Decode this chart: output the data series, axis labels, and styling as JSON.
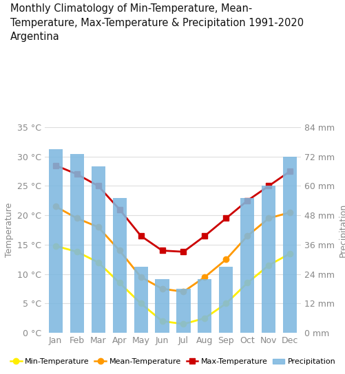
{
  "title": "Monthly Climatology of Min-Temperature, Mean-\nTemperature, Max-Temperature & Precipitation 1991-2020\nArgentina",
  "months": [
    "Jan",
    "Feb",
    "Mar",
    "Apr",
    "May",
    "Jun",
    "Jul",
    "Aug",
    "Sep",
    "Oct",
    "Nov",
    "Dec"
  ],
  "min_temp": [
    14.8,
    13.8,
    12.0,
    8.5,
    5.0,
    2.0,
    1.5,
    2.5,
    5.0,
    8.5,
    11.5,
    13.5
  ],
  "mean_temp": [
    21.5,
    19.5,
    18.0,
    14.0,
    9.5,
    7.5,
    7.0,
    9.5,
    12.5,
    16.5,
    19.5,
    20.5
  ],
  "max_temp": [
    28.5,
    27.0,
    25.0,
    21.0,
    16.5,
    14.0,
    13.8,
    16.5,
    19.5,
    22.5,
    25.0,
    27.5
  ],
  "precipitation": [
    75,
    73,
    68,
    55,
    27,
    22,
    18,
    22,
    27,
    55,
    60,
    72
  ],
  "bar_color": "#7eb8e0",
  "min_temp_color": "#ffee00",
  "mean_temp_color": "#ff9900",
  "max_temp_color": "#cc0000",
  "ylabel_left": "Temperature",
  "ylabel_right": "Precipitation",
  "ylim_left": [
    0,
    35
  ],
  "ylim_right": [
    0,
    84
  ],
  "yticks_left": [
    0,
    5,
    10,
    15,
    20,
    25,
    30,
    35
  ],
  "ytick_labels_left": [
    "0 °C",
    "5 °C",
    "10 °C",
    "15 °C",
    "20 °C",
    "25 °C",
    "30 °C",
    "35 °C"
  ],
  "yticks_right": [
    0,
    12,
    24,
    36,
    48,
    60,
    72,
    84
  ],
  "ytick_labels_right": [
    "0 mm",
    "12 mm",
    "24 mm",
    "36 mm",
    "48 mm",
    "60 mm",
    "72 mm",
    "84 mm"
  ],
  "legend_labels": [
    "Min-Temperature",
    "Mean-Temperature",
    "Max-Temperature",
    "Precipitation"
  ],
  "background_color": "#ffffff",
  "grid_color": "#dddddd",
  "tick_color": "#888888",
  "title_fontsize": 10.5,
  "axis_fontsize": 9
}
